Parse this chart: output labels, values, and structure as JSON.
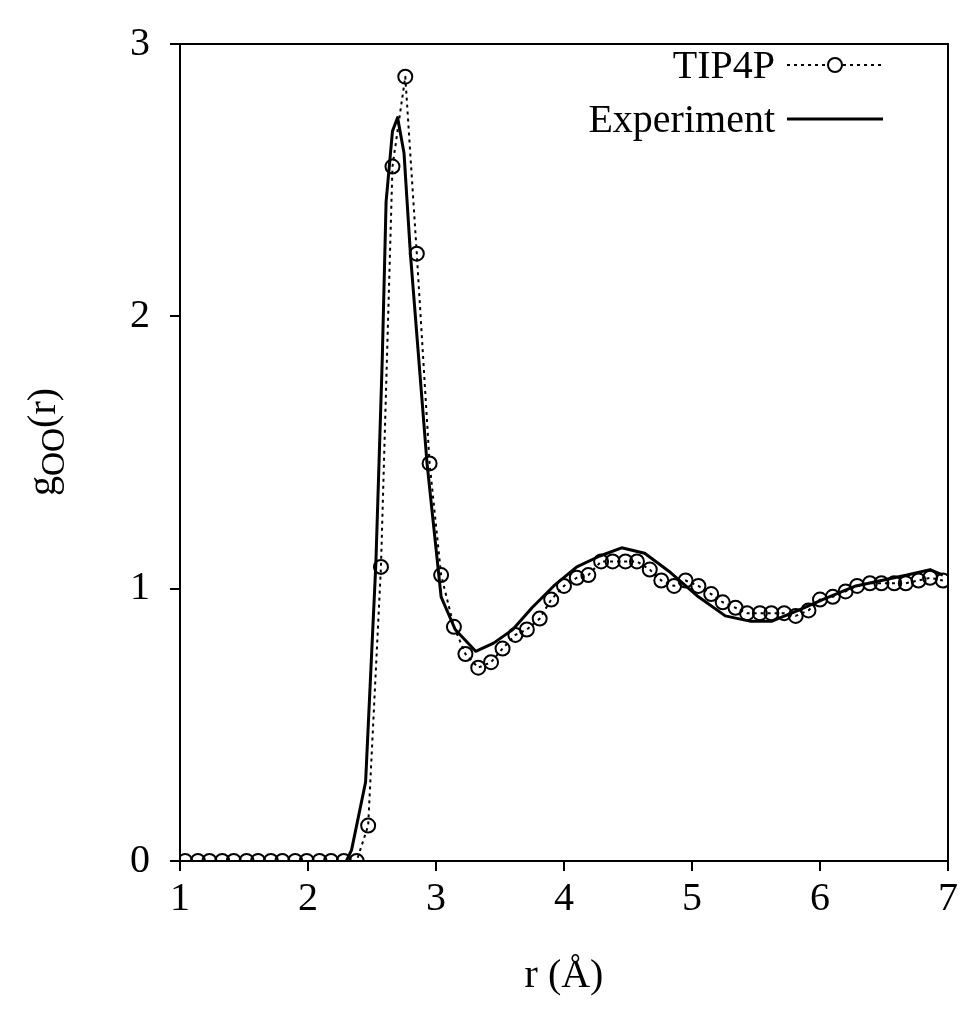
{
  "chart_data": {
    "type": "line",
    "xlabel": "r (Å)",
    "ylabel": "g$_{OO}$(r)",
    "xlim": [
      1,
      7
    ],
    "xticks": [
      1,
      2,
      3,
      4,
      5,
      6,
      7
    ],
    "ylim": [
      0,
      3
    ],
    "yticks": [
      0,
      1,
      2,
      3
    ],
    "grid": false,
    "legend": "top right",
    "series": [
      {
        "name": "TIP4P",
        "color": "#000000",
        "marker": "circle",
        "line_style": "dotted",
        "x": [
          1.04,
          1.14,
          1.23,
          1.33,
          1.42,
          1.52,
          1.61,
          1.71,
          1.8,
          1.9,
          1.99,
          2.09,
          2.18,
          2.28,
          2.38,
          2.47,
          2.57,
          2.66,
          2.76,
          2.85,
          2.95,
          3.04,
          3.14,
          3.23,
          3.33,
          3.43,
          3.52,
          3.62,
          3.71,
          3.81,
          3.9,
          4.0,
          4.1,
          4.19,
          4.29,
          4.38,
          4.48,
          4.57,
          4.67,
          4.76,
          4.86,
          4.95,
          5.05,
          5.15,
          5.24,
          5.34,
          5.43,
          5.53,
          5.62,
          5.72,
          5.81,
          5.91,
          6.0,
          6.1,
          6.2,
          6.29,
          6.39,
          6.48,
          6.58,
          6.67,
          6.77,
          6.86,
          6.96
        ],
        "values": [
          0,
          0,
          0,
          0,
          0,
          0,
          0,
          0,
          0,
          0,
          0,
          0,
          0,
          0,
          0,
          0.13,
          1.08,
          2.55,
          2.88,
          2.23,
          1.46,
          1.05,
          0.86,
          0.76,
          0.71,
          0.73,
          0.78,
          0.83,
          0.85,
          0.89,
          0.96,
          1.01,
          1.04,
          1.05,
          1.1,
          1.1,
          1.1,
          1.1,
          1.07,
          1.03,
          1.01,
          1.03,
          1.01,
          0.98,
          0.95,
          0.93,
          0.91,
          0.91,
          0.91,
          0.91,
          0.9,
          0.92,
          0.96,
          0.97,
          0.99,
          1.01,
          1.02,
          1.02,
          1.02,
          1.02,
          1.03,
          1.04,
          1.03
        ]
      },
      {
        "name": "Experiment",
        "color": "#000000",
        "marker": "none",
        "line_style": "solid",
        "x": [
          2.3,
          2.34,
          2.45,
          2.53,
          2.58,
          2.61,
          2.66,
          2.7,
          2.75,
          2.8,
          2.93,
          3.04,
          3.15,
          3.31,
          3.45,
          3.6,
          3.75,
          3.92,
          4.1,
          4.28,
          4.45,
          4.63,
          4.83,
          5.05,
          5.26,
          5.46,
          5.62,
          5.83,
          6.02,
          6.28,
          6.68,
          6.86,
          6.96
        ],
        "values": [
          0,
          0.04,
          0.29,
          1.09,
          1.84,
          2.42,
          2.68,
          2.73,
          2.6,
          2.23,
          1.46,
          0.97,
          0.85,
          0.77,
          0.8,
          0.85,
          0.93,
          1.01,
          1.08,
          1.12,
          1.15,
          1.13,
          1.06,
          0.97,
          0.9,
          0.88,
          0.88,
          0.92,
          0.96,
          1.01,
          1.05,
          1.07,
          1.05
        ]
      }
    ]
  }
}
